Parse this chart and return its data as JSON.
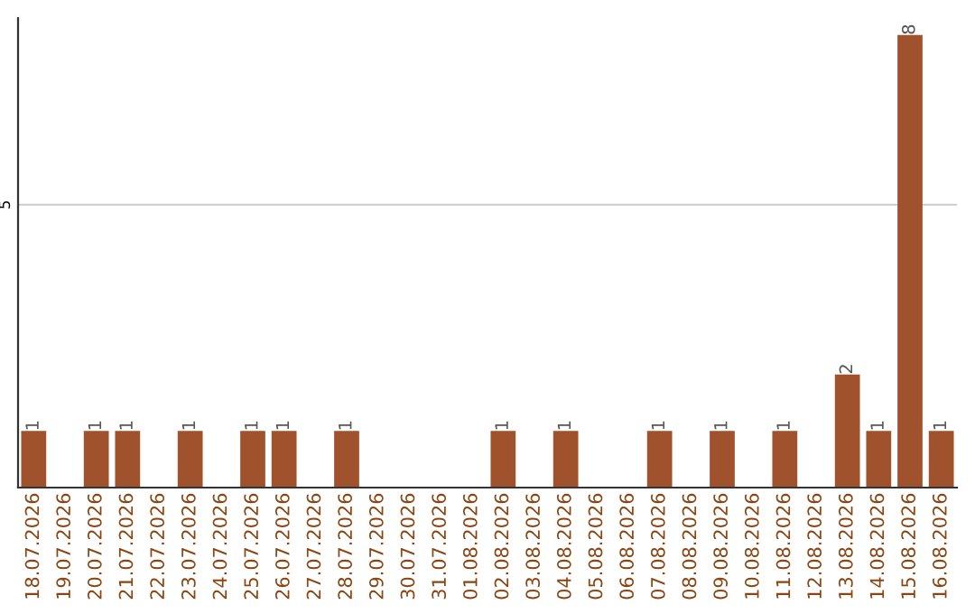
{
  "chart_data": {
    "type": "bar",
    "categories": [
      "18.07.2026",
      "19.07.2026",
      "20.07.2026",
      "21.07.2026",
      "22.07.2026",
      "23.07.2026",
      "24.07.2026",
      "25.07.2026",
      "26.07.2026",
      "27.07.2026",
      "28.07.2026",
      "29.07.2026",
      "30.07.2026",
      "31.07.2026",
      "01.08.2026",
      "02.08.2026",
      "03.08.2026",
      "04.08.2026",
      "05.08.2026",
      "06.08.2026",
      "07.08.2026",
      "08.08.2026",
      "09.08.2026",
      "10.08.2026",
      "11.08.2026",
      "12.08.2026",
      "13.08.2026",
      "14.08.2026",
      "15.08.2026",
      "16.08.2026"
    ],
    "values": [
      1,
      0,
      1,
      1,
      0,
      1,
      0,
      1,
      1,
      0,
      1,
      0,
      0,
      0,
      0,
      1,
      0,
      1,
      0,
      0,
      1,
      0,
      1,
      0,
      1,
      0,
      2,
      1,
      8,
      1
    ],
    "value_labels": [
      "1",
      null,
      "1",
      "1",
      null,
      "1",
      null,
      "1",
      "1",
      null,
      "1",
      null,
      null,
      null,
      null,
      "1",
      null,
      "1",
      null,
      null,
      "1",
      null,
      "1",
      null,
      "1",
      null,
      "2",
      "1",
      "8",
      "1"
    ],
    "color": "#a0522d",
    "ylim": [
      0,
      8.3
    ],
    "yticks": [
      5
    ],
    "grid": "y",
    "legend": false
  }
}
